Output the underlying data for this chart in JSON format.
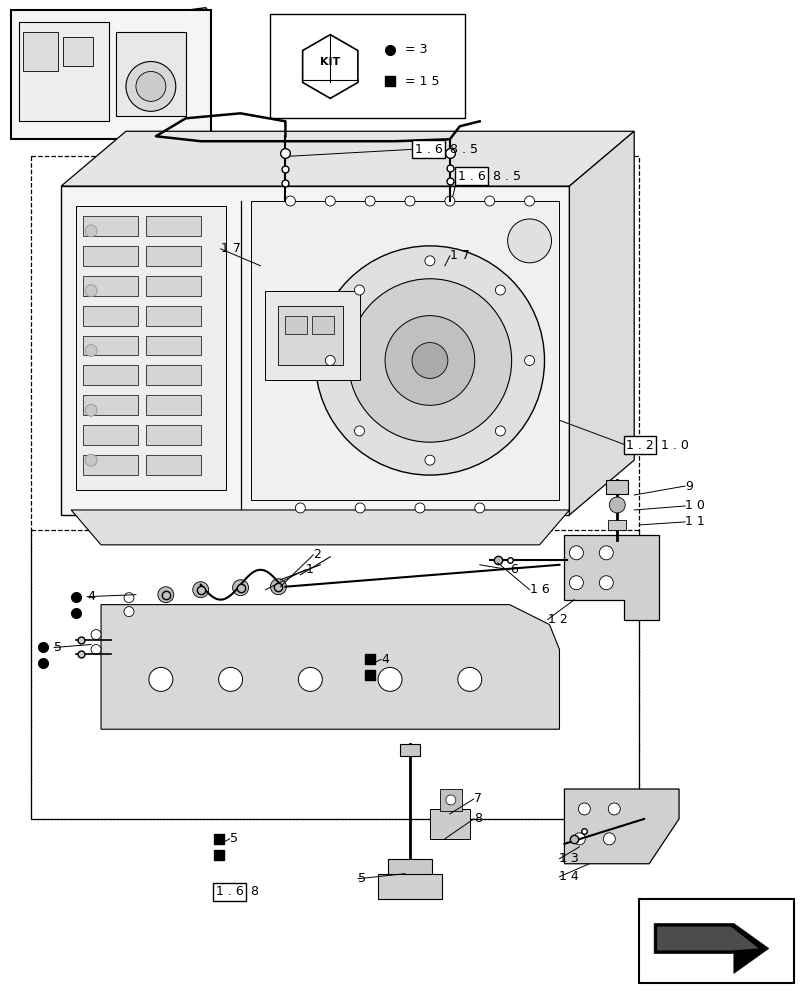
{
  "bg_color": "#ffffff",
  "page_width": 8.12,
  "page_height": 10.0,
  "dpi": 100
}
